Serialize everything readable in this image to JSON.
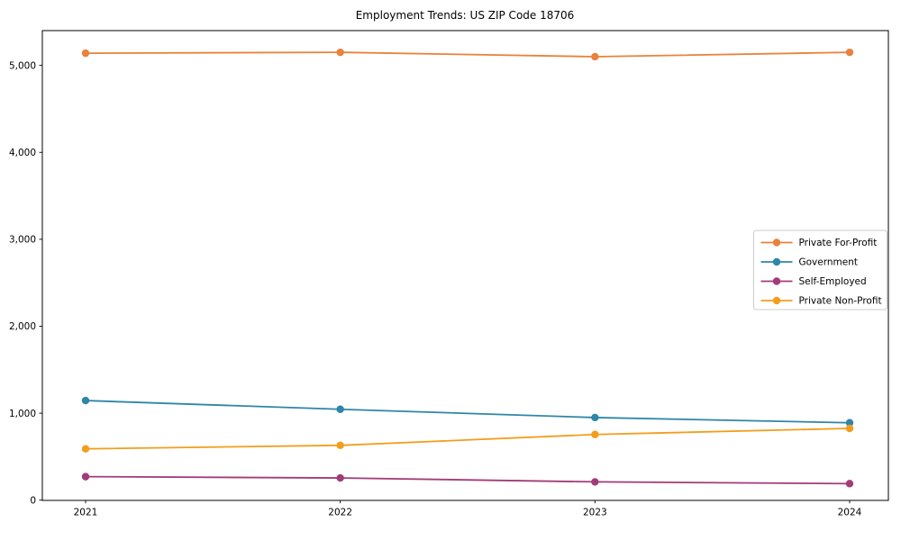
{
  "chart_data": {
    "type": "line",
    "title": "Employment Trends: US ZIP Code 18706",
    "xlabel": "",
    "ylabel": "",
    "categories": [
      "2021",
      "2022",
      "2023",
      "2024"
    ],
    "series": [
      {
        "name": "Private For-Profit",
        "color": "#E8823C",
        "values": [
          5140,
          5150,
          5100,
          5150
        ]
      },
      {
        "name": "Government",
        "color": "#2E86A8",
        "values": [
          1145,
          1045,
          950,
          890
        ]
      },
      {
        "name": "Self-Employed",
        "color": "#A23B79",
        "values": [
          270,
          255,
          210,
          190
        ]
      },
      {
        "name": "Private Non-Profit",
        "color": "#F29E1C",
        "values": [
          590,
          630,
          755,
          825
        ]
      }
    ],
    "ylim": [
      0,
      5400
    ],
    "yticks": [
      0,
      1000,
      2000,
      3000,
      4000,
      5000
    ],
    "ytick_labels": [
      "0",
      "1,000",
      "2,000",
      "3,000",
      "4,000",
      "5,000"
    ],
    "legend_position": "center-right",
    "grid": false,
    "marker": "circle",
    "frame_color": "#000000",
    "legend_border_color": "#cccccc"
  }
}
